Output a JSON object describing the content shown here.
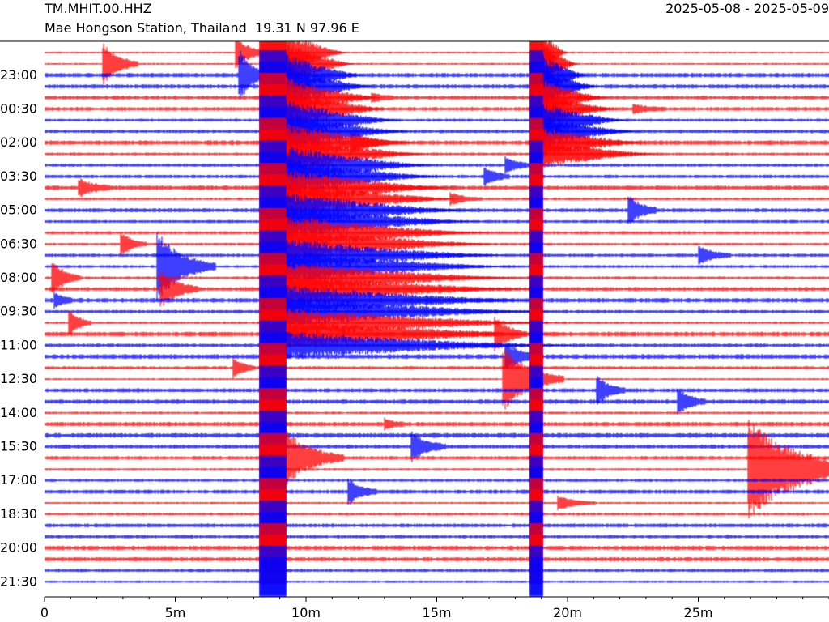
{
  "header": {
    "station_code": "TM.MHIT.00.HHZ",
    "station_info": "Mae Hongson Station, Thailand  19.31 N 97.96 E",
    "date_range": "2025-05-08 - 2025-05-09"
  },
  "colors": {
    "red": "#ff0000",
    "blue": "#0000ff",
    "axis": "#000000",
    "background": "#ffffff"
  },
  "chart_data": {
    "type": "line",
    "subtype": "helicorder",
    "minutes_per_line": 30,
    "row_colors": [
      "red",
      "red",
      "blue",
      "blue"
    ],
    "row_labels": [
      "23:00",
      "00:30",
      "02:00",
      "03:30",
      "05:00",
      "06:30",
      "08:00",
      "09:30",
      "11:00",
      "12:30",
      "14:00",
      "15:30",
      "17:00",
      "18:30",
      "20:00",
      "21:30"
    ],
    "row_label_every": 3,
    "xaxis": {
      "range": [
        0,
        30
      ],
      "ticks": [
        0,
        5,
        10,
        15,
        20,
        25
      ],
      "tick_labels": [
        "0",
        "5m",
        "10m",
        "15m",
        "20m",
        "25m"
      ]
    },
    "events": [
      {
        "row": 1,
        "x": 2.2,
        "amp": 2.2,
        "width": 0.55
      },
      {
        "row": 0,
        "x": 7.3,
        "amp": 1.6,
        "width": 0.5
      },
      {
        "row": 2,
        "x": 7.4,
        "amp": 2.6,
        "width": 0.5
      },
      {
        "row": 4,
        "x": 12.5,
        "amp": 0.4,
        "width": 0.4
      },
      {
        "row": 5,
        "x": 22.5,
        "amp": 0.4,
        "width": 0.5
      },
      {
        "row": 8,
        "x": 11.7,
        "amp": 1.2,
        "width": 0.5
      },
      {
        "row": 10,
        "x": 17.6,
        "amp": 0.9,
        "width": 0.4
      },
      {
        "row": 11,
        "x": 16.8,
        "amp": 1.0,
        "width": 0.4
      },
      {
        "row": 12,
        "x": 1.3,
        "amp": 0.8,
        "width": 0.5
      },
      {
        "row": 13,
        "x": 15.5,
        "amp": 0.6,
        "width": 0.5
      },
      {
        "row": 14,
        "x": 22.3,
        "amp": 1.5,
        "width": 0.45
      },
      {
        "row": 17,
        "x": 2.9,
        "amp": 1.2,
        "width": 0.4
      },
      {
        "row": 18,
        "x": 25.0,
        "amp": 0.9,
        "width": 0.5
      },
      {
        "row": 19,
        "x": 4.3,
        "amp": 3.2,
        "width": 0.9
      },
      {
        "row": 20,
        "x": 0.25,
        "amp": 1.8,
        "width": 0.45
      },
      {
        "row": 21,
        "x": 4.4,
        "amp": 1.8,
        "width": 0.6
      },
      {
        "row": 22,
        "x": 0.35,
        "amp": 0.8,
        "width": 0.3
      },
      {
        "row": 24,
        "x": 0.9,
        "amp": 1.4,
        "width": 0.35
      },
      {
        "row": 25,
        "x": 17.2,
        "amp": 1.6,
        "width": 0.5
      },
      {
        "row": 27,
        "x": 17.6,
        "amp": 1.4,
        "width": 0.5
      },
      {
        "row": 28,
        "x": 7.2,
        "amp": 1.0,
        "width": 0.35
      },
      {
        "row": 29,
        "x": 17.5,
        "amp": 3.0,
        "width": 0.95
      },
      {
        "row": 30,
        "x": 21.1,
        "amp": 1.4,
        "width": 0.45
      },
      {
        "row": 31,
        "x": 24.2,
        "amp": 1.3,
        "width": 0.45
      },
      {
        "row": 33,
        "x": 13.0,
        "amp": 0.5,
        "width": 0.3
      },
      {
        "row": 35,
        "x": 14.0,
        "amp": 1.4,
        "width": 0.55
      },
      {
        "row": 36,
        "x": 9.2,
        "amp": 2.6,
        "width": 0.9
      },
      {
        "row": 37,
        "x": 26.9,
        "amp": 4.5,
        "width": 1.9
      },
      {
        "row": 39,
        "x": 11.6,
        "amp": 1.2,
        "width": 0.45
      },
      {
        "row": 40,
        "x": 19.6,
        "amp": 0.7,
        "width": 0.6
      }
    ],
    "saturated_bands": [
      {
        "start_row": 0,
        "x_start": 8.25,
        "width": 1.0,
        "coda_rows": 27,
        "coda_width": 12
      },
      {
        "start_row": 0,
        "x_start": 18.6,
        "width": 0.45,
        "coda_rows": 10,
        "coda_width": 5
      }
    ]
  }
}
